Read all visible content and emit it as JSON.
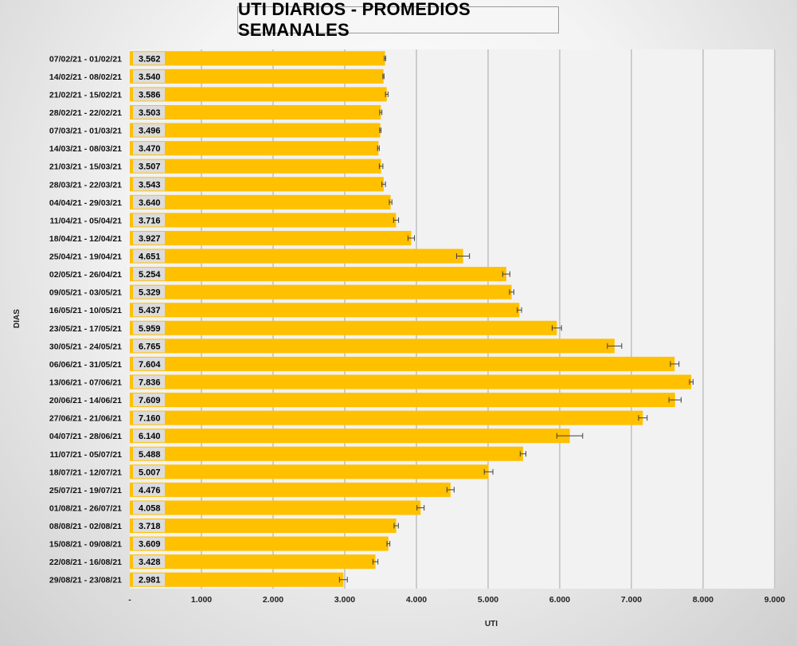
{
  "chart_data": {
    "type": "bar",
    "orientation": "horizontal",
    "title": "UTI DIARIOS - PROMEDIOS SEMANALES",
    "xlabel": "UTI",
    "ylabel": "DIAS",
    "xlim": [
      0,
      9000
    ],
    "x_ticks": [
      0,
      1000,
      2000,
      3000,
      4000,
      5000,
      6000,
      7000,
      8000,
      9000
    ],
    "x_tick_labels": [
      "-",
      "1.000",
      "2.000",
      "3.000",
      "4.000",
      "5.000",
      "6.000",
      "7.000",
      "8.000",
      "9.000"
    ],
    "grid": "vertical",
    "bar_color": "#FFC000",
    "plot_background": "#F2F2F2",
    "error_bars": true,
    "categories": [
      "07/02/21 - 01/02/21",
      "14/02/21 - 08/02/21",
      "21/02/21 - 15/02/21",
      "28/02/21 - 22/02/21",
      "07/03/21 - 01/03/21",
      "14/03/21 - 08/03/21",
      "21/03/21 - 15/03/21",
      "28/03/21 - 22/03/21",
      "04/04/21 - 29/03/21",
      "11/04/21 - 05/04/21",
      "18/04/21 - 12/04/21",
      "25/04/21 - 19/04/21",
      "02/05/21 - 26/04/21",
      "09/05/21 - 03/05/21",
      "16/05/21 - 10/05/21",
      "23/05/21 - 17/05/21",
      "30/05/21 - 24/05/21",
      "06/06/21 - 31/05/21",
      "13/06/21 - 07/06/21",
      "20/06/21 - 14/06/21",
      "27/06/21 - 21/06/21",
      "04/07/21 - 28/06/21",
      "11/07/21 - 05/07/21",
      "18/07/21 - 12/07/21",
      "25/07/21 - 19/07/21",
      "01/08/21 - 26/07/21",
      "08/08/21 - 02/08/21",
      "15/08/21 - 09/08/21",
      "22/08/21 - 16/08/21",
      "29/08/21 - 23/08/21"
    ],
    "values": [
      3562,
      3540,
      3586,
      3503,
      3496,
      3470,
      3507,
      3543,
      3640,
      3716,
      3927,
      4651,
      5254,
      5329,
      5437,
      5959,
      6765,
      7604,
      7836,
      7609,
      7160,
      6140,
      5488,
      5007,
      4476,
      4058,
      3718,
      3609,
      3428,
      2981
    ],
    "value_labels": [
      "3.562",
      "3.540",
      "3.586",
      "3.503",
      "3.496",
      "3.470",
      "3.507",
      "3.543",
      "3.640",
      "3.716",
      "3.927",
      "4.651",
      "5.254",
      "5.329",
      "5.437",
      "5.959",
      "6.765",
      "7.604",
      "7.836",
      "7.609",
      "7.160",
      "6.140",
      "5.488",
      "5.007",
      "4.476",
      "4.058",
      "3.718",
      "3.609",
      "3.428",
      "2.981"
    ],
    "errors": [
      10,
      8,
      18,
      15,
      10,
      12,
      25,
      25,
      18,
      35,
      45,
      90,
      50,
      30,
      30,
      65,
      100,
      60,
      25,
      85,
      60,
      180,
      40,
      60,
      50,
      50,
      30,
      20,
      35,
      55
    ]
  }
}
